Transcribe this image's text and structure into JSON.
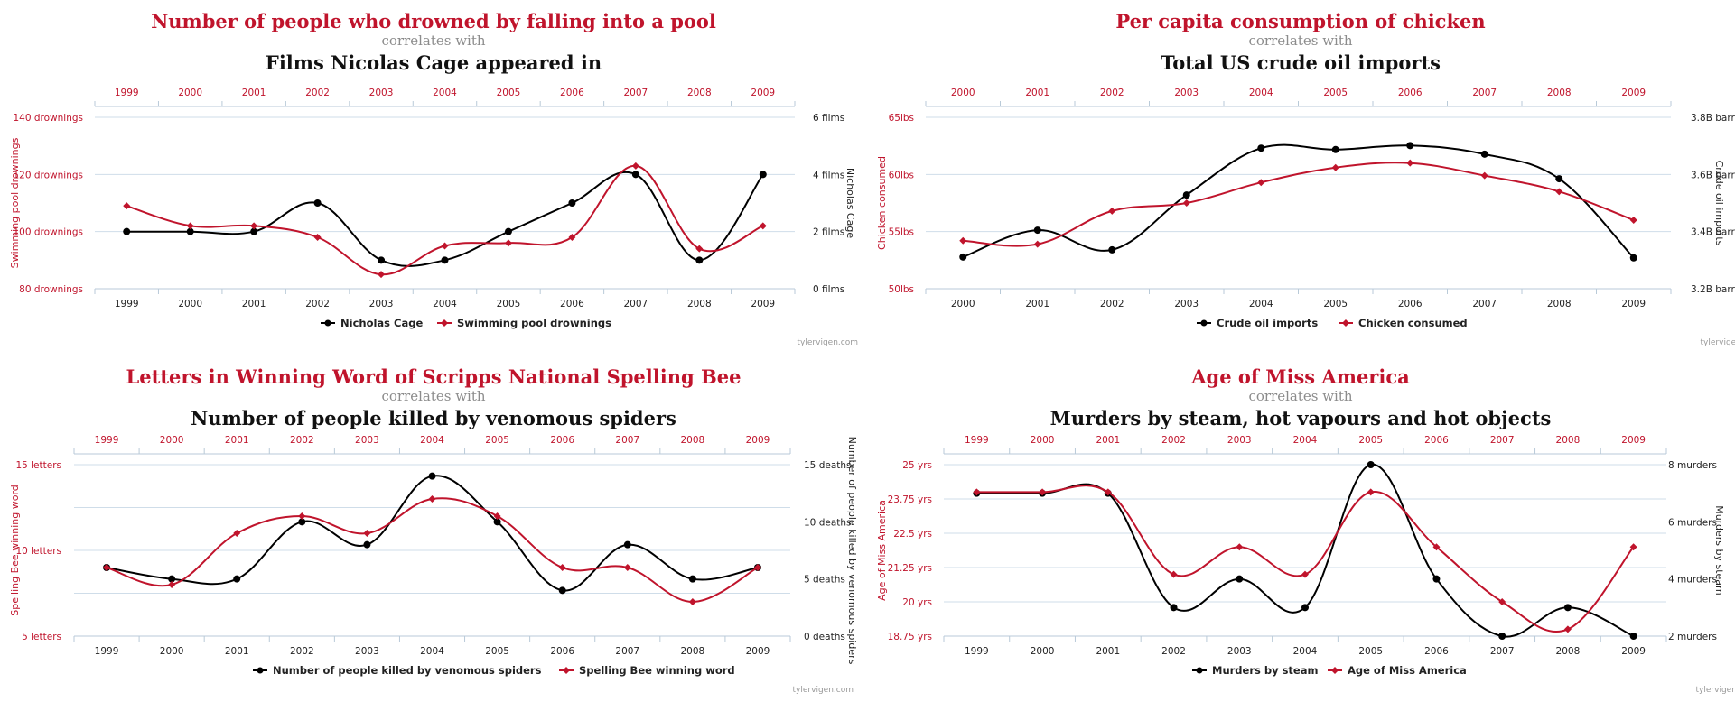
{
  "credit": "tylervigen.com",
  "connector": "correlates with",
  "colors": {
    "red": "#c0142c",
    "black": "#000000",
    "grid": "#cfdde9"
  },
  "chart_data": [
    {
      "type": "line",
      "title_top": "Number of people who drowned by falling into a pool",
      "title_bottom": "Films Nicolas Cage appeared in",
      "x": [
        "1999",
        "2000",
        "2001",
        "2002",
        "2003",
        "2004",
        "2005",
        "2006",
        "2007",
        "2008",
        "2009"
      ],
      "ylabel_left": "Swimming pool drownings",
      "ylabel_right": "Nicholas Cage",
      "ylim_left": [
        80,
        140
      ],
      "ylim_right": [
        0,
        6
      ],
      "yticks_left": [
        "80 drownings",
        "100 drownings",
        "120 drownings",
        "140 drownings"
      ],
      "yticks_right": [
        "0 films",
        "2 films",
        "4 films",
        "6 films"
      ],
      "series": [
        {
          "name": "Nicholas Cage",
          "axis": "right",
          "color": "#000000",
          "values": [
            2,
            2,
            2,
            3,
            1,
            1,
            2,
            3,
            4,
            1,
            4
          ]
        },
        {
          "name": "Swimming pool drownings",
          "axis": "left",
          "color": "#c0142c",
          "values": [
            109,
            102,
            102,
            98,
            85,
            95,
            96,
            98,
            123,
            94,
            102
          ]
        }
      ]
    },
    {
      "type": "line",
      "title_top": "Per capita consumption of chicken",
      "title_bottom": "Total US crude oil imports",
      "x": [
        "2000",
        "2001",
        "2002",
        "2003",
        "2004",
        "2005",
        "2006",
        "2007",
        "2008",
        "2009"
      ],
      "ylabel_left": "Chicken consumed",
      "ylabel_right": "Crude oil imports",
      "ylim_left": [
        50,
        65
      ],
      "ylim_right": [
        3.2,
        3.8
      ],
      "yticks_left": [
        "50lbs",
        "55lbs",
        "60lbs",
        "65lbs"
      ],
      "yticks_right": [
        "3.2B barrels",
        "3.4B barrels",
        "3.6B barrels",
        "3.8B barrels"
      ],
      "series": [
        {
          "name": "Crude oil imports",
          "axis": "right",
          "color": "#000000",
          "values": [
            3.311,
            3.405,
            3.336,
            3.528,
            3.692,
            3.687,
            3.701,
            3.671,
            3.585,
            3.308
          ]
        },
        {
          "name": "Chicken consumed",
          "axis": "left",
          "color": "#c0142c",
          "values": [
            54.2,
            53.9,
            56.8,
            57.5,
            59.3,
            60.6,
            61.0,
            59.9,
            58.5,
            56.0
          ]
        }
      ]
    },
    {
      "type": "line",
      "title_top": "Letters in Winning Word of Scripps National Spelling Bee",
      "title_bottom": "Number of people killed by venomous spiders",
      "x": [
        "1999",
        "2000",
        "2001",
        "2002",
        "2003",
        "2004",
        "2005",
        "2006",
        "2007",
        "2008",
        "2009"
      ],
      "ylabel_left": "Spelling Bee winning word",
      "ylabel_right": "Number of people killed by venomous spiders",
      "ylim_left": [
        5,
        15
      ],
      "ylim_right": [
        0,
        15
      ],
      "yticks_left": [
        "5 letters",
        "",
        "10 letters",
        "",
        "15 letters"
      ],
      "yticks_right": [
        "0 deaths",
        "5 deaths",
        "10 deaths",
        "15 deaths"
      ],
      "series": [
        {
          "name": "Number of people killed by venomous spiders",
          "axis": "right",
          "color": "#000000",
          "values": [
            6,
            5,
            5,
            10,
            8,
            14,
            10,
            4,
            8,
            5,
            6
          ]
        },
        {
          "name": "Spelling Bee winning word",
          "axis": "left",
          "color": "#c0142c",
          "values": [
            9,
            8,
            11,
            12,
            11,
            13,
            12,
            9,
            9,
            7,
            9
          ]
        }
      ]
    },
    {
      "type": "line",
      "title_top": "Age of Miss America",
      "title_bottom": "Murders by steam, hot vapours and hot objects",
      "x": [
        "1999",
        "2000",
        "2001",
        "2002",
        "2003",
        "2004",
        "2005",
        "2006",
        "2007",
        "2008",
        "2009"
      ],
      "ylabel_left": "Age of Miss America",
      "ylabel_right": "Murders by steam",
      "ylim_left": [
        18.75,
        25
      ],
      "ylim_right": [
        2,
        8
      ],
      "yticks_left": [
        "18.75 yrs",
        "20 yrs",
        "21.25 yrs",
        "22.5 yrs",
        "23.75 yrs",
        "25 yrs"
      ],
      "yticks_right": [
        "2 murders",
        "4 murders",
        "6 murders",
        "8 murders"
      ],
      "series": [
        {
          "name": "Murders by steam",
          "axis": "right",
          "color": "#000000",
          "values": [
            7,
            7,
            7,
            3,
            4,
            3,
            8,
            4,
            2,
            3,
            2
          ]
        },
        {
          "name": "Age of Miss America",
          "axis": "left",
          "color": "#c0142c",
          "values": [
            24,
            24,
            24,
            21,
            22,
            21,
            24,
            22,
            20,
            19,
            22
          ]
        }
      ]
    }
  ]
}
